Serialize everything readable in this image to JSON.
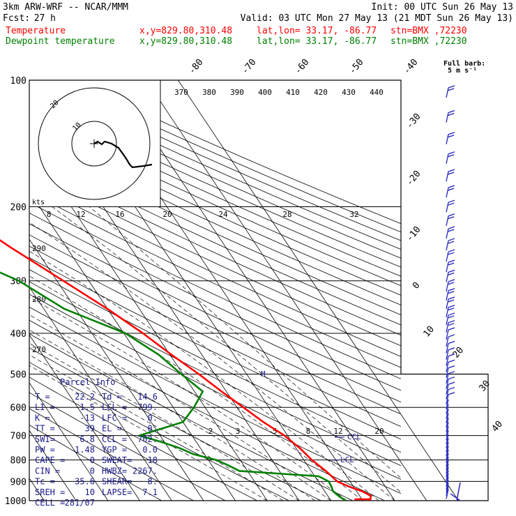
{
  "header": {
    "model": "3km ARW-WRF -- NCAR/MMM",
    "init": "Init: 00 UTC Sun 26 May 13",
    "fcst_label": "Fcst:",
    "fcst_hours": "27 h",
    "valid": "Valid: 03 UTC Mon 27 May 13 (21 MDT Sun 26 May 13)",
    "temp_label": "Temperature",
    "dew_label": "Dewpoint temperature",
    "xy": "x,y=829.80,310.48",
    "latlon": "lat,lon= 33.17, -86.77",
    "stn": "stn=BMX ,72230"
  },
  "colors": {
    "temperature": "#ff0000",
    "dewpoint": "#008000",
    "wind_barbs": "#3030c0",
    "frame": "#000000"
  },
  "chart_data": {
    "type": "line",
    "subtype": "skew-T log-P sounding",
    "pressure_levels_hPa": [
      100,
      200,
      300,
      400,
      500,
      600,
      700,
      800,
      900,
      1000
    ],
    "isotherm_labels_C": [
      -80,
      -70,
      -60,
      -50,
      -40,
      -30,
      -20,
      -10,
      0,
      10,
      20,
      30,
      40
    ],
    "theta_labels_K": [
      370,
      380,
      390,
      400,
      410,
      420,
      430,
      440
    ],
    "theta_left_labels": [
      290,
      280,
      270
    ],
    "mixing_ratio_labels": [
      2,
      3,
      5,
      8,
      12,
      20
    ],
    "hodograph_speed_labels_kts": [
      8,
      12,
      16,
      20,
      24,
      28,
      32
    ],
    "hodograph_ring_labels": [
      "20",
      "10"
    ],
    "kts_label": "kts",
    "series": [
      {
        "name": "Temperature",
        "color": "#ff0000",
        "points_p_t": [
          [
            1000,
            22.2
          ],
          [
            975,
            23.5
          ],
          [
            950,
            21.8
          ],
          [
            925,
            18.5
          ],
          [
            900,
            16.0
          ],
          [
            850,
            14.6
          ],
          [
            800,
            12.5
          ],
          [
            750,
            11.2
          ],
          [
            700,
            9.0
          ],
          [
            650,
            5.2
          ],
          [
            600,
            2.0
          ],
          [
            550,
            -1.5
          ],
          [
            500,
            -5.0
          ],
          [
            450,
            -9.5
          ],
          [
            400,
            -14.0
          ],
          [
            350,
            -20.0
          ],
          [
            300,
            -28.0
          ],
          [
            250,
            -37.5
          ],
          [
            200,
            -48.0
          ],
          [
            175,
            -52.0
          ],
          [
            150,
            -54.0
          ],
          [
            125,
            -58.5
          ],
          [
            100,
            -63.0
          ]
        ]
      },
      {
        "name": "Dewpoint temperature",
        "color": "#008000",
        "points_p_t": [
          [
            1000,
            14.6
          ],
          [
            975,
            13.4
          ],
          [
            950,
            12.6
          ],
          [
            925,
            13.1
          ],
          [
            900,
            13.3
          ],
          [
            875,
            11.2
          ],
          [
            850,
            -12.5
          ],
          [
            825,
            -14.8
          ],
          [
            800,
            -17.5
          ],
          [
            775,
            -23.5
          ],
          [
            750,
            -26.5
          ],
          [
            725,
            -31.0
          ],
          [
            700,
            -36.5
          ],
          [
            650,
            -20.0
          ],
          [
            600,
            -13.5
          ],
          [
            550,
            -7.4
          ],
          [
            500,
            -10.5
          ],
          [
            450,
            -13.5
          ],
          [
            400,
            -19.5
          ],
          [
            350,
            -33.5
          ],
          [
            300,
            -42.0
          ],
          [
            250,
            -58.5
          ],
          [
            200,
            -74.5
          ],
          [
            175,
            -74.0
          ],
          [
            150,
            -73.5
          ],
          [
            125,
            -80.0
          ],
          [
            100,
            -86.0
          ]
        ]
      }
    ],
    "annotations": {
      "ccl_label": "CCL",
      "lcl_label": "LCL",
      "m_label": "M",
      "full_barb_label": "Full barb:",
      "full_barb_value": "5 m s⁻¹"
    }
  },
  "parcel_info": {
    "title": "Parcel Info",
    "rows": [
      [
        "T  =",
        "22.2",
        "Td =",
        "14.6"
      ],
      [
        "LI =",
        "1.5",
        "LCL =",
        "799."
      ],
      [
        "K  =",
        "-13",
        "LFC =",
        "0."
      ],
      [
        "TT =",
        "39",
        "EL =",
        "0."
      ],
      [
        "SWI=",
        "6.8",
        "CCL =",
        "702."
      ],
      [
        "PW =",
        "1.48",
        "YGP =",
        "0.0"
      ],
      [
        "CAPE =",
        "0",
        "SWEAT=",
        "18"
      ],
      [
        "CIN =",
        "0",
        "HWBZ=",
        "2267."
      ],
      [
        "Tc =",
        "35.6",
        "SHEAR=",
        "8."
      ],
      [
        "SREH =",
        "10",
        "LAPSE=",
        "7.1"
      ],
      [
        "CELL =",
        "281/07",
        "",
        ""
      ]
    ]
  }
}
